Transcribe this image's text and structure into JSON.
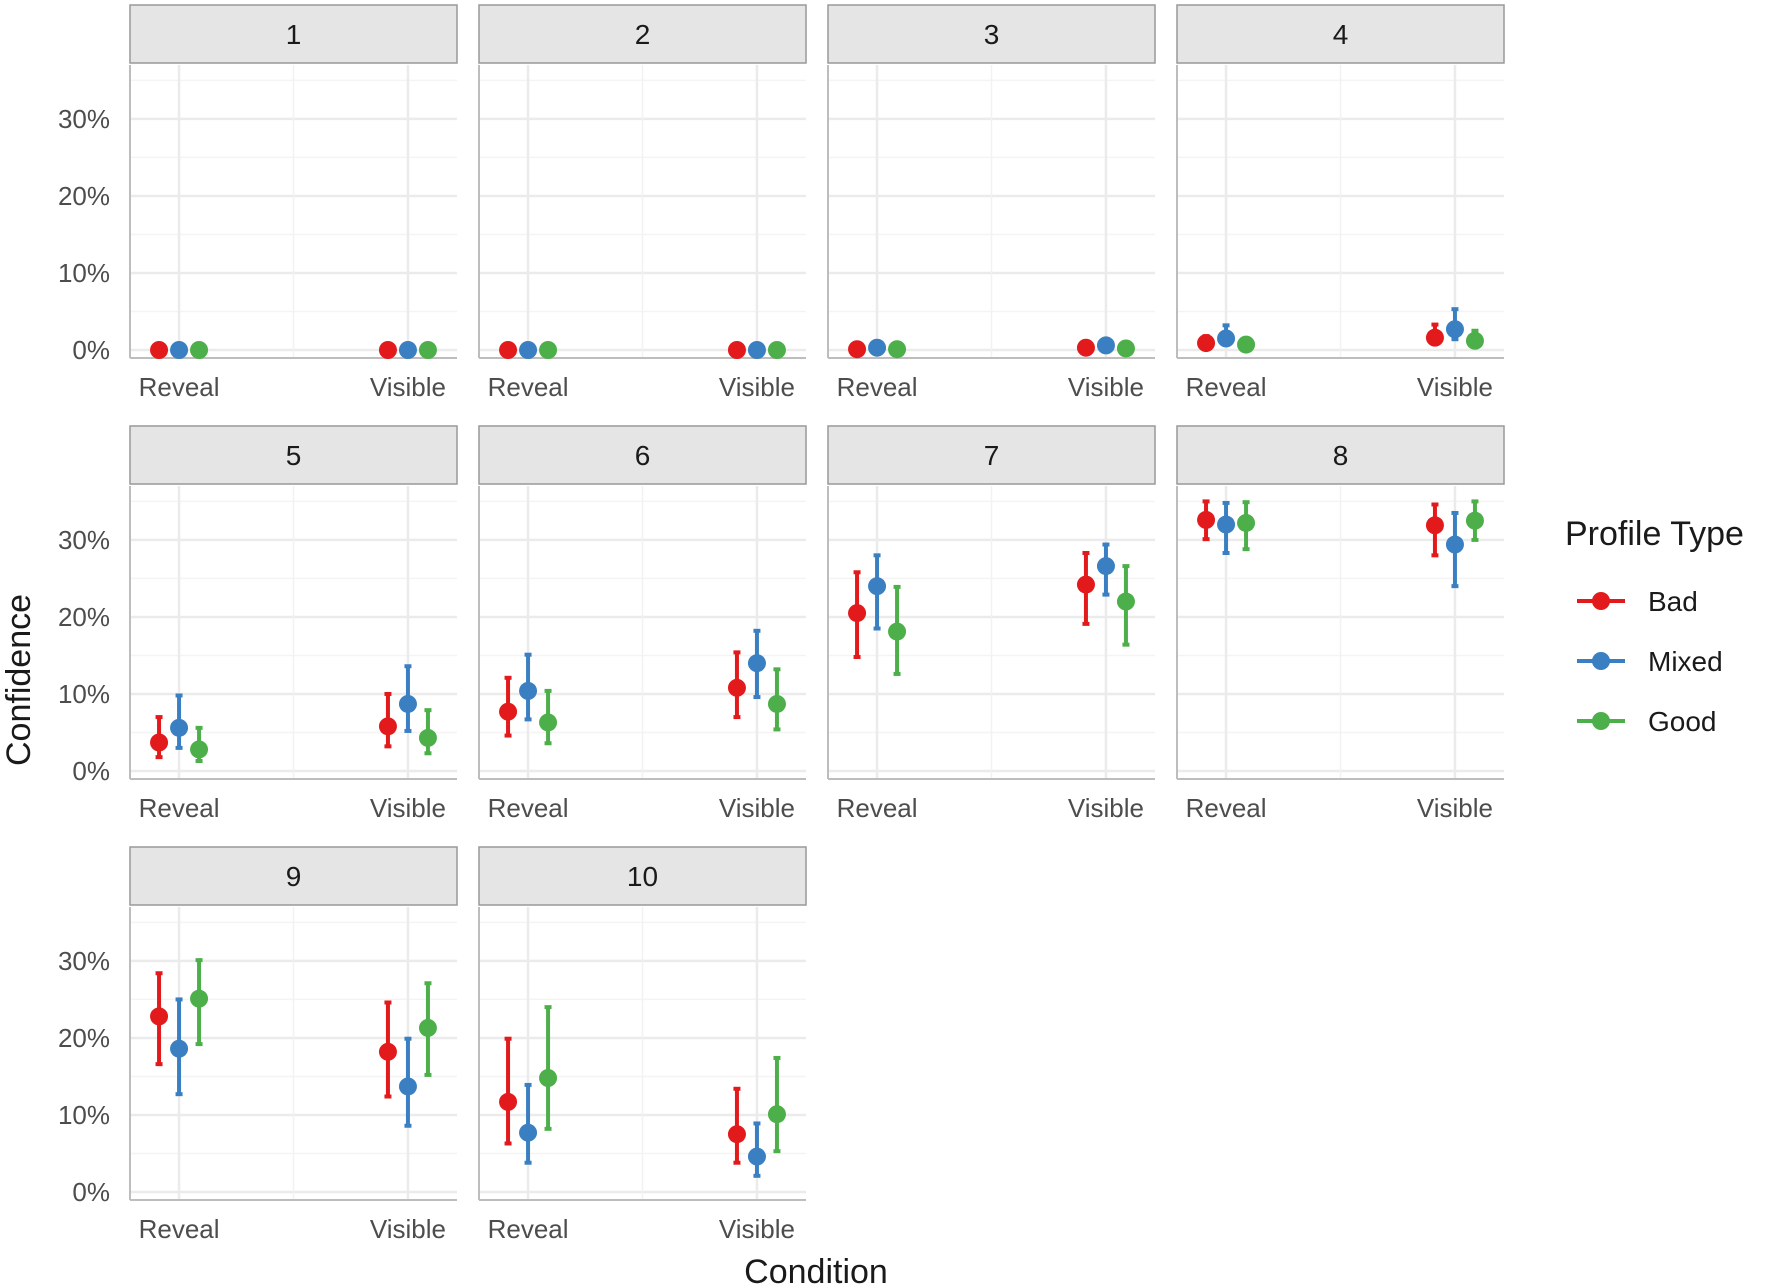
{
  "chart_data": {
    "type": "scatter",
    "subtype": "faceted point range with error bars",
    "xlabel": "Condition",
    "ylabel": "Confidence",
    "x_categories": [
      "Reveal",
      "Visible"
    ],
    "y_ticks": [
      "0%",
      "10%",
      "20%",
      "30%"
    ],
    "ylim": [
      0,
      37
    ],
    "grid": true,
    "legend": {
      "title": "Profile Type",
      "placement": "right",
      "entries": [
        {
          "name": "Bad",
          "color": "#e31a1c"
        },
        {
          "name": "Mixed",
          "color": "#3a7fc1"
        },
        {
          "name": "Good",
          "color": "#4daf4a"
        }
      ]
    },
    "panels": [
      {
        "label": "1",
        "points": [
          {
            "condition": "Reveal",
            "profile": "Bad",
            "y": 0,
            "lo": 0,
            "hi": 0
          },
          {
            "condition": "Reveal",
            "profile": "Mixed",
            "y": 0,
            "lo": 0,
            "hi": 0
          },
          {
            "condition": "Reveal",
            "profile": "Good",
            "y": 0,
            "lo": 0,
            "hi": 0
          },
          {
            "condition": "Visible",
            "profile": "Bad",
            "y": 0,
            "lo": 0,
            "hi": 0
          },
          {
            "condition": "Visible",
            "profile": "Mixed",
            "y": 0,
            "lo": 0,
            "hi": 0
          },
          {
            "condition": "Visible",
            "profile": "Good",
            "y": 0,
            "lo": 0,
            "hi": 0
          }
        ]
      },
      {
        "label": "2",
        "points": [
          {
            "condition": "Reveal",
            "profile": "Bad",
            "y": 0,
            "lo": 0,
            "hi": 0
          },
          {
            "condition": "Reveal",
            "profile": "Mixed",
            "y": 0,
            "lo": 0,
            "hi": 0
          },
          {
            "condition": "Reveal",
            "profile": "Good",
            "y": 0,
            "lo": 0,
            "hi": 0
          },
          {
            "condition": "Visible",
            "profile": "Bad",
            "y": 0,
            "lo": 0,
            "hi": 0
          },
          {
            "condition": "Visible",
            "profile": "Mixed",
            "y": 0,
            "lo": 0,
            "hi": 0
          },
          {
            "condition": "Visible",
            "profile": "Good",
            "y": 0,
            "lo": 0,
            "hi": 0
          }
        ]
      },
      {
        "label": "3",
        "points": [
          {
            "condition": "Reveal",
            "profile": "Bad",
            "y": 0.1,
            "lo": 0,
            "hi": 0.2
          },
          {
            "condition": "Reveal",
            "profile": "Mixed",
            "y": 0.3,
            "lo": 0.1,
            "hi": 0.5
          },
          {
            "condition": "Reveal",
            "profile": "Good",
            "y": 0.1,
            "lo": 0,
            "hi": 0.2
          },
          {
            "condition": "Visible",
            "profile": "Bad",
            "y": 0.3,
            "lo": 0.1,
            "hi": 0.5
          },
          {
            "condition": "Visible",
            "profile": "Mixed",
            "y": 0.6,
            "lo": 0.2,
            "hi": 1.0
          },
          {
            "condition": "Visible",
            "profile": "Good",
            "y": 0.2,
            "lo": 0,
            "hi": 0.4
          }
        ]
      },
      {
        "label": "4",
        "points": [
          {
            "condition": "Reveal",
            "profile": "Bad",
            "y": 0.9,
            "lo": 0.4,
            "hi": 1.8
          },
          {
            "condition": "Reveal",
            "profile": "Mixed",
            "y": 1.5,
            "lo": 0.7,
            "hi": 3.2
          },
          {
            "condition": "Reveal",
            "profile": "Good",
            "y": 0.7,
            "lo": 0.3,
            "hi": 1.5
          },
          {
            "condition": "Visible",
            "profile": "Bad",
            "y": 1.6,
            "lo": 0.8,
            "hi": 3.3
          },
          {
            "condition": "Visible",
            "profile": "Mixed",
            "y": 2.7,
            "lo": 1.4,
            "hi": 5.3
          },
          {
            "condition": "Visible",
            "profile": "Good",
            "y": 1.2,
            "lo": 0.6,
            "hi": 2.5
          }
        ]
      },
      {
        "label": "5",
        "points": [
          {
            "condition": "Reveal",
            "profile": "Bad",
            "y": 3.7,
            "lo": 1.8,
            "hi": 7.0
          },
          {
            "condition": "Reveal",
            "profile": "Mixed",
            "y": 5.6,
            "lo": 3.0,
            "hi": 9.8
          },
          {
            "condition": "Reveal",
            "profile": "Good",
            "y": 2.8,
            "lo": 1.3,
            "hi": 5.6
          },
          {
            "condition": "Visible",
            "profile": "Bad",
            "y": 5.8,
            "lo": 3.2,
            "hi": 10.0
          },
          {
            "condition": "Visible",
            "profile": "Mixed",
            "y": 8.7,
            "lo": 5.2,
            "hi": 13.6
          },
          {
            "condition": "Visible",
            "profile": "Good",
            "y": 4.3,
            "lo": 2.3,
            "hi": 7.9
          }
        ]
      },
      {
        "label": "6",
        "points": [
          {
            "condition": "Reveal",
            "profile": "Bad",
            "y": 7.7,
            "lo": 4.6,
            "hi": 12.1
          },
          {
            "condition": "Reveal",
            "profile": "Mixed",
            "y": 10.4,
            "lo": 6.7,
            "hi": 15.1
          },
          {
            "condition": "Reveal",
            "profile": "Good",
            "y": 6.3,
            "lo": 3.6,
            "hi": 10.4
          },
          {
            "condition": "Visible",
            "profile": "Bad",
            "y": 10.8,
            "lo": 7.0,
            "hi": 15.4
          },
          {
            "condition": "Visible",
            "profile": "Mixed",
            "y": 14.0,
            "lo": 9.6,
            "hi": 18.2
          },
          {
            "condition": "Visible",
            "profile": "Good",
            "y": 8.7,
            "lo": 5.4,
            "hi": 13.2
          }
        ]
      },
      {
        "label": "7",
        "points": [
          {
            "condition": "Reveal",
            "profile": "Bad",
            "y": 20.5,
            "lo": 14.8,
            "hi": 25.8
          },
          {
            "condition": "Reveal",
            "profile": "Mixed",
            "y": 24.0,
            "lo": 18.5,
            "hi": 28.0
          },
          {
            "condition": "Reveal",
            "profile": "Good",
            "y": 18.1,
            "lo": 12.6,
            "hi": 23.9
          },
          {
            "condition": "Visible",
            "profile": "Bad",
            "y": 24.2,
            "lo": 19.1,
            "hi": 28.3
          },
          {
            "condition": "Visible",
            "profile": "Mixed",
            "y": 26.6,
            "lo": 22.9,
            "hi": 29.4
          },
          {
            "condition": "Visible",
            "profile": "Good",
            "y": 22.0,
            "lo": 16.4,
            "hi": 26.6
          }
        ]
      },
      {
        "label": "8",
        "points": [
          {
            "condition": "Reveal",
            "profile": "Bad",
            "y": 32.6,
            "lo": 30.1,
            "hi": 35.0
          },
          {
            "condition": "Reveal",
            "profile": "Mixed",
            "y": 32.0,
            "lo": 28.3,
            "hi": 34.8
          },
          {
            "condition": "Reveal",
            "profile": "Good",
            "y": 32.2,
            "lo": 28.8,
            "hi": 34.9
          },
          {
            "condition": "Visible",
            "profile": "Bad",
            "y": 31.9,
            "lo": 28.0,
            "hi": 34.6
          },
          {
            "condition": "Visible",
            "profile": "Mixed",
            "y": 29.4,
            "lo": 24.0,
            "hi": 33.5
          },
          {
            "condition": "Visible",
            "profile": "Good",
            "y": 32.5,
            "lo": 30.0,
            "hi": 35.0
          }
        ]
      },
      {
        "label": "9",
        "points": [
          {
            "condition": "Reveal",
            "profile": "Bad",
            "y": 22.8,
            "lo": 16.6,
            "hi": 28.4
          },
          {
            "condition": "Reveal",
            "profile": "Mixed",
            "y": 18.6,
            "lo": 12.7,
            "hi": 25.0
          },
          {
            "condition": "Reveal",
            "profile": "Good",
            "y": 25.1,
            "lo": 19.2,
            "hi": 30.1
          },
          {
            "condition": "Visible",
            "profile": "Bad",
            "y": 18.2,
            "lo": 12.4,
            "hi": 24.6
          },
          {
            "condition": "Visible",
            "profile": "Mixed",
            "y": 13.7,
            "lo": 8.6,
            "hi": 19.9
          },
          {
            "condition": "Visible",
            "profile": "Good",
            "y": 21.3,
            "lo": 15.2,
            "hi": 27.1
          }
        ]
      },
      {
        "label": "10",
        "points": [
          {
            "condition": "Reveal",
            "profile": "Bad",
            "y": 11.7,
            "lo": 6.3,
            "hi": 19.9
          },
          {
            "condition": "Reveal",
            "profile": "Mixed",
            "y": 7.7,
            "lo": 3.8,
            "hi": 13.9
          },
          {
            "condition": "Reveal",
            "profile": "Good",
            "y": 14.8,
            "lo": 8.2,
            "hi": 24.0
          },
          {
            "condition": "Visible",
            "profile": "Bad",
            "y": 7.5,
            "lo": 3.8,
            "hi": 13.4
          },
          {
            "condition": "Visible",
            "profile": "Mixed",
            "y": 4.6,
            "lo": 2.1,
            "hi": 8.9
          },
          {
            "condition": "Visible",
            "profile": "Good",
            "y": 10.1,
            "lo": 5.3,
            "hi": 17.4
          }
        ]
      }
    ]
  }
}
